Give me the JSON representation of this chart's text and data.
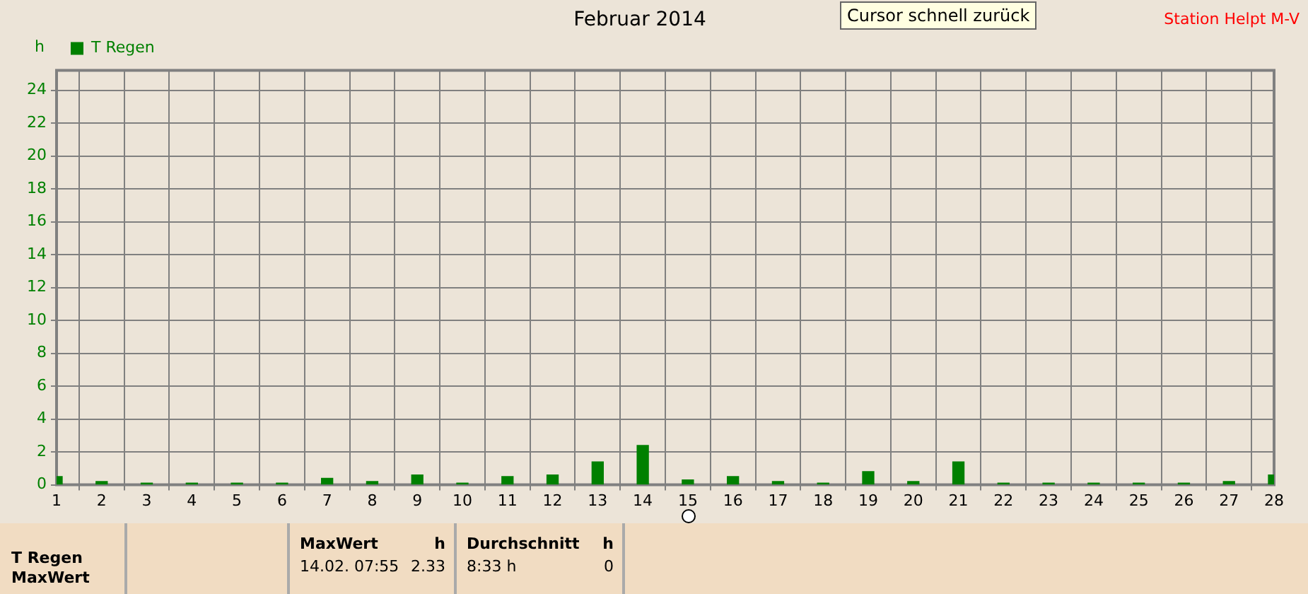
{
  "chart_data": {
    "type": "bar",
    "title": "Februar 2014",
    "ylabel": "h",
    "x": [
      1,
      2,
      3,
      4,
      5,
      6,
      7,
      8,
      9,
      10,
      11,
      12,
      13,
      14,
      15,
      16,
      17,
      18,
      19,
      20,
      21,
      22,
      23,
      24,
      25,
      26,
      27,
      28
    ],
    "series": [
      {
        "name": "T Regen",
        "color": "#008000",
        "values": [
          0.5,
          0.2,
          0.1,
          0.1,
          0.1,
          0.1,
          0.4,
          0.2,
          0.6,
          0.1,
          0.5,
          0.6,
          1.4,
          2.4,
          0.3,
          0.5,
          0.2,
          0.1,
          0.8,
          0.2,
          1.4,
          0.1,
          0.1,
          0.1,
          0.1,
          0.1,
          0.2,
          0.6
        ]
      }
    ],
    "xlim": [
      1,
      28
    ],
    "xticks": [
      1,
      2,
      3,
      4,
      5,
      6,
      7,
      8,
      9,
      10,
      11,
      12,
      13,
      14,
      15,
      16,
      17,
      18,
      19,
      20,
      21,
      22,
      23,
      24,
      25,
      26,
      27,
      28
    ],
    "ylim": [
      0,
      25.2
    ],
    "yticks": [
      0,
      2,
      4,
      6,
      8,
      10,
      12,
      14,
      16,
      18,
      20,
      22,
      24
    ],
    "grid": true,
    "legend": "top left",
    "annotations": [
      "Station Helpt M-V",
      "Cursor schnell zurück",
      "T Regen",
      "MaxWert",
      "MaxWert",
      "h",
      "14.02.  07:55",
      "2.33",
      "Durchschnitt",
      "h",
      "8:33 h",
      "0"
    ]
  }
}
